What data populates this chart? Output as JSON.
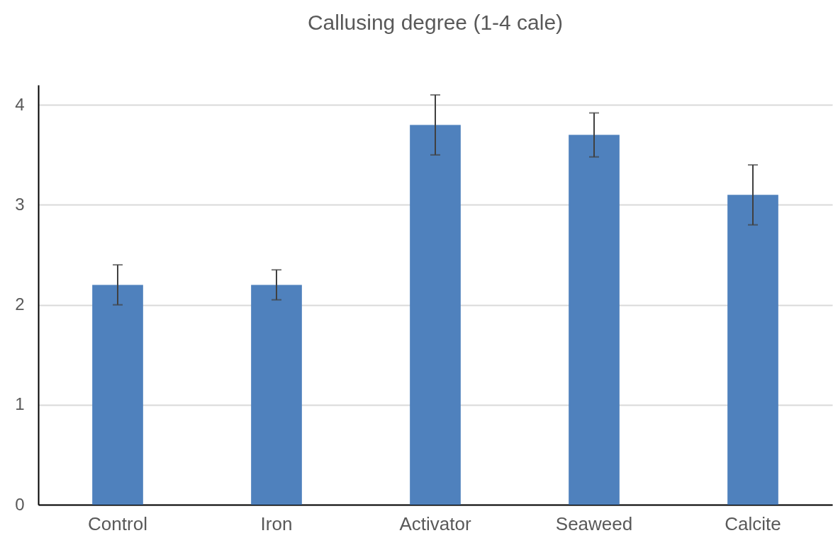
{
  "chart_data": {
    "type": "bar",
    "title": "Callusing degree (1-4 cale)",
    "categories": [
      "Control",
      "Iron",
      "Activator",
      "Seaweed",
      "Calcite"
    ],
    "values": [
      2.2,
      2.2,
      3.8,
      3.7,
      3.1
    ],
    "errors": [
      0.2,
      0.15,
      0.3,
      0.22,
      0.3
    ],
    "color": "#4f81bd",
    "ylim": [
      0,
      4.2
    ],
    "yticks": [
      0,
      1,
      2,
      3,
      4
    ],
    "grid": "y"
  }
}
